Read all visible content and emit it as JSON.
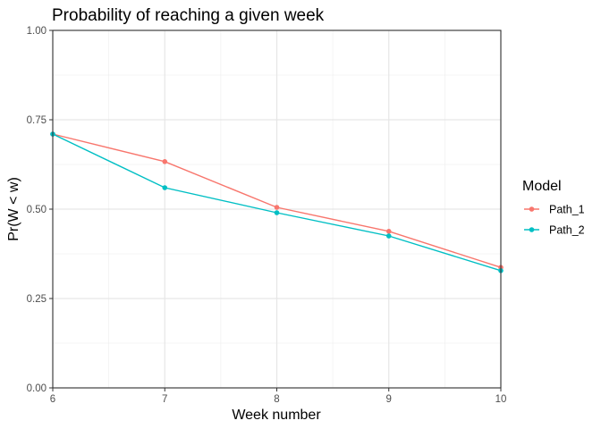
{
  "chart_data": {
    "type": "line",
    "title": "Probability of reaching a given week",
    "xlabel": "Week number",
    "ylabel": "Pr(W < w)",
    "xlim": [
      6,
      10
    ],
    "ylim": [
      0,
      1
    ],
    "x_ticks": [
      6,
      7,
      8,
      9,
      10
    ],
    "x_tick_labels": [
      "6",
      "7",
      "8",
      "9",
      "10"
    ],
    "y_ticks": [
      0,
      0.25,
      0.5,
      0.75,
      1
    ],
    "y_tick_labels": [
      "0.00",
      "0.25",
      "0.50",
      "0.75",
      "1.00"
    ],
    "grid": true,
    "legend": {
      "title": "Model",
      "position": "right"
    },
    "x": [
      6,
      7,
      8,
      9,
      10
    ],
    "series": [
      {
        "name": "Path_1",
        "color": "#F8766D",
        "values": [
          0.71,
          0.633,
          0.505,
          0.438,
          0.337
        ]
      },
      {
        "name": "Path_2",
        "color": "#00BFC4",
        "values": [
          0.71,
          0.56,
          0.49,
          0.425,
          0.328
        ]
      }
    ]
  }
}
